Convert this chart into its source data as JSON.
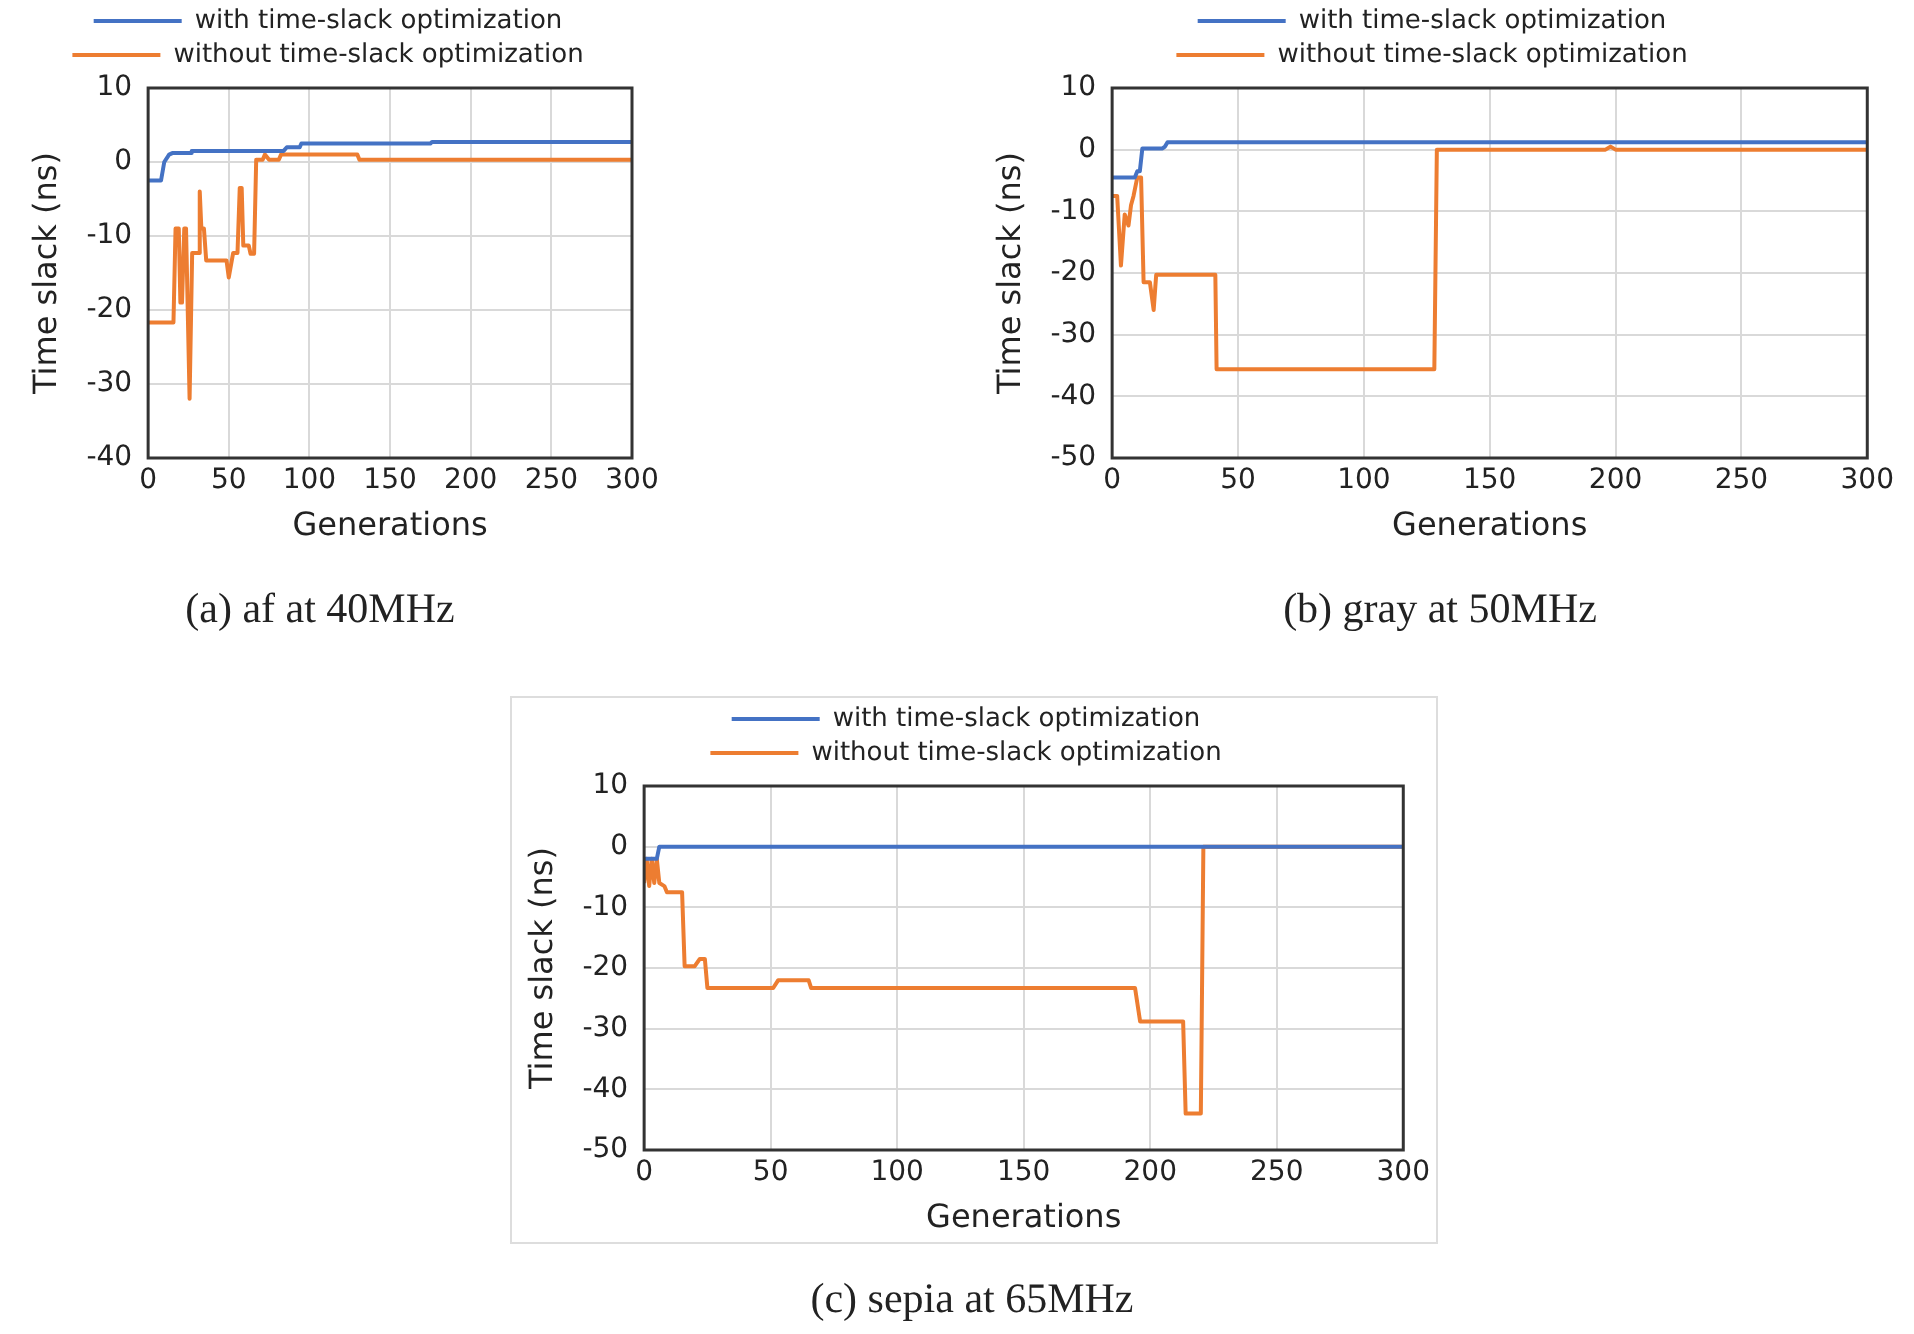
{
  "chart_data": [
    {
      "type": "line",
      "title": "(a) af at 40MHz",
      "xlabel": "Generations",
      "ylabel": "Time slack (ns)",
      "xlim": [
        0,
        300
      ],
      "xticks": [
        0,
        50,
        100,
        150,
        200,
        250,
        300
      ],
      "ylim": [
        -40,
        10
      ],
      "yticks": [
        -40,
        -30,
        -20,
        -10,
        0,
        10
      ],
      "grid": true,
      "legend": "top",
      "series": [
        {
          "name": "with time-slack optimization",
          "color": "#4472c4",
          "x": [
            0,
            8,
            10,
            13,
            15,
            26,
            27,
            84,
            86,
            94,
            95,
            175,
            176,
            300
          ],
          "values": [
            -2.5,
            -2.5,
            0,
            1,
            1.2,
            1.2,
            1.5,
            1.5,
            2,
            2,
            2.5,
            2.5,
            2.7,
            2.7
          ]
        },
        {
          "name": "without time-slack optimization",
          "color": "#ed7d31",
          "x": [
            0,
            15.7,
            17,
            19,
            20,
            21,
            22.4,
            23.5,
            25.7,
            27.3,
            31,
            32,
            33,
            34.6,
            36,
            48.6,
            50,
            52.7,
            55.4,
            56.8,
            58,
            59,
            62.4,
            63.5,
            65.7,
            67,
            71,
            72.4,
            75,
            81,
            82.4,
            129.7,
            131,
            300
          ],
          "values": [
            -21.7,
            -21.7,
            -9,
            -9,
            -19,
            -19,
            -9,
            -9,
            -32,
            -12.3,
            -12.3,
            -4,
            -9,
            -9,
            -13.3,
            -13.3,
            -15.6,
            -12.3,
            -12.3,
            -3.5,
            -3.5,
            -11.3,
            -11.3,
            -12.4,
            -12.4,
            0.3,
            0.3,
            1,
            0.3,
            0.3,
            1,
            1,
            0.3,
            0.3
          ]
        }
      ]
    },
    {
      "type": "line",
      "title": "(b) gray at 50MHz",
      "xlabel": "Generations",
      "ylabel": "Time slack (ns)",
      "xlim": [
        0,
        300
      ],
      "xticks": [
        0,
        50,
        100,
        150,
        200,
        250,
        300
      ],
      "ylim": [
        -50,
        10
      ],
      "yticks": [
        -50,
        -40,
        -30,
        -20,
        -10,
        0,
        10
      ],
      "grid": true,
      "legend": "top",
      "series": [
        {
          "name": "with time-slack optimization",
          "color": "#4472c4",
          "x": [
            0,
            9,
            10,
            11,
            12,
            20,
            21,
            22,
            300
          ],
          "values": [
            -4.5,
            -4.5,
            -3.5,
            -3.5,
            0.2,
            0.2,
            0.5,
            1.2,
            1.2
          ]
        },
        {
          "name": "without time-slack optimization",
          "color": "#ed7d31",
          "x": [
            0,
            2,
            3.5,
            5,
            6.5,
            7.5,
            8.5,
            10,
            11.5,
            12.5,
            15,
            16.5,
            17.5,
            41,
            41.5,
            128,
            129,
            196,
            198,
            200,
            300
          ],
          "values": [
            -7.5,
            -7.5,
            -18.8,
            -10.5,
            -12.3,
            -9,
            -7.5,
            -4.5,
            -4.5,
            -21.5,
            -21.5,
            -26,
            -20.3,
            -20.3,
            -35.6,
            -35.6,
            0,
            0,
            0.5,
            0,
            0
          ]
        }
      ]
    },
    {
      "type": "line",
      "title": "(c) sepia at 65MHz",
      "xlabel": "Generations",
      "ylabel": "Time slack (ns)",
      "xlim": [
        0,
        300
      ],
      "xticks": [
        0,
        50,
        100,
        150,
        200,
        250,
        300
      ],
      "ylim": [
        -50,
        10
      ],
      "yticks": [
        -50,
        -40,
        -30,
        -20,
        -10,
        0,
        10
      ],
      "grid": true,
      "legend": "top",
      "series": [
        {
          "name": "with time-slack optimization",
          "color": "#4472c4",
          "x": [
            0,
            5,
            6,
            300
          ],
          "values": [
            -2,
            -2,
            0,
            0
          ]
        },
        {
          "name": "without time-slack optimization",
          "color": "#ed7d31",
          "x": [
            0,
            1,
            2,
            3,
            4,
            5,
            6,
            8,
            9,
            15,
            16,
            20,
            22,
            24,
            25,
            51,
            53,
            65,
            66,
            194,
            196,
            213,
            214,
            220,
            221,
            300
          ],
          "values": [
            -6,
            -2,
            -6.5,
            -2,
            -6,
            -2,
            -6,
            -6.5,
            -7.5,
            -7.5,
            -19.7,
            -19.7,
            -18.5,
            -18.5,
            -23.3,
            -23.3,
            -22,
            -22,
            -23.3,
            -23.3,
            -28.8,
            -28.8,
            -44,
            -44,
            0,
            0
          ]
        }
      ]
    }
  ]
}
